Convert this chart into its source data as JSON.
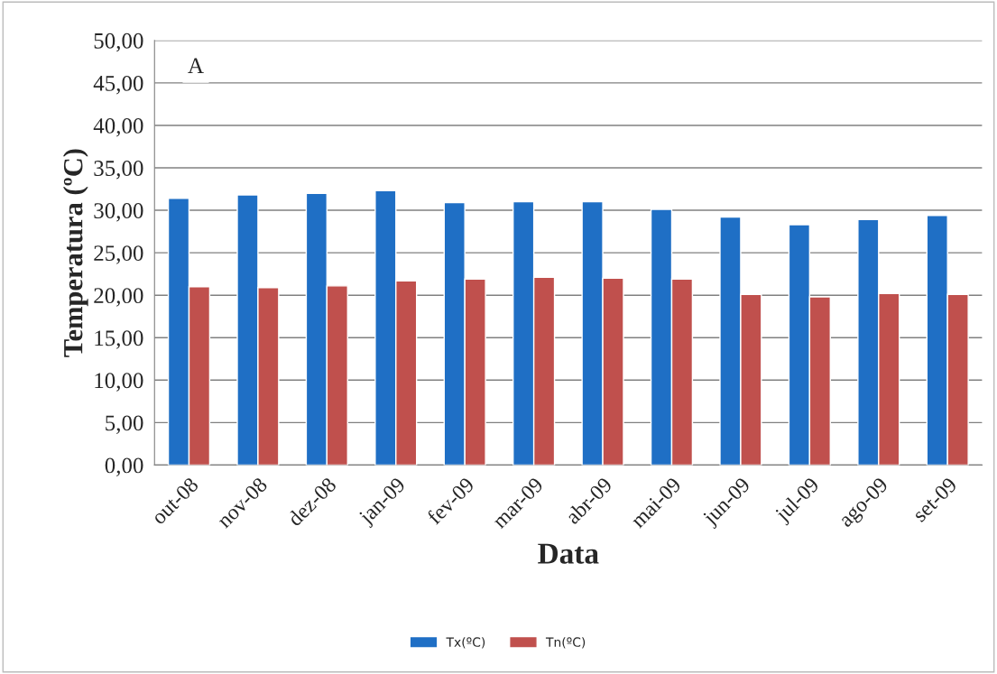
{
  "chart_data": {
    "type": "bar",
    "categories": [
      "out-08",
      "nov-08",
      "dez-08",
      "jan-09",
      "fev-09",
      "mar-09",
      "abr-09",
      "mai-09",
      "jun-09",
      "jul-09",
      "ago-09",
      "set-09"
    ],
    "series": [
      {
        "name": "Tx(ºC)",
        "color": "#1f6fc5",
        "values": [
          31.4,
          31.8,
          32.0,
          32.3,
          30.9,
          31.0,
          31.0,
          30.1,
          29.2,
          28.3,
          28.9,
          29.4
        ]
      },
      {
        "name": "Tn(ºC)",
        "color": "#c0504d",
        "values": [
          21.0,
          20.9,
          21.1,
          21.7,
          21.9,
          22.1,
          22.0,
          21.9,
          20.1,
          19.8,
          20.2,
          20.1
        ]
      }
    ],
    "xlabel": "Data",
    "ylabel": "Temperatura (ºC)",
    "ylim": [
      0,
      50
    ],
    "yticks": [
      {
        "value": 0,
        "label": "0,00"
      },
      {
        "value": 5,
        "label": "5,00"
      },
      {
        "value": 10,
        "label": "10,00"
      },
      {
        "value": 15,
        "label": "15,00"
      },
      {
        "value": 20,
        "label": "20,00"
      },
      {
        "value": 25,
        "label": "25,00"
      },
      {
        "value": 30,
        "label": "30,00"
      },
      {
        "value": 35,
        "label": "35,00"
      },
      {
        "value": 40,
        "label": "40,00"
      },
      {
        "value": 45,
        "label": "45,00"
      },
      {
        "value": 50,
        "label": "50,00"
      }
    ],
    "annotations": [
      "A"
    ],
    "grid": "y",
    "legend": "bottom"
  }
}
